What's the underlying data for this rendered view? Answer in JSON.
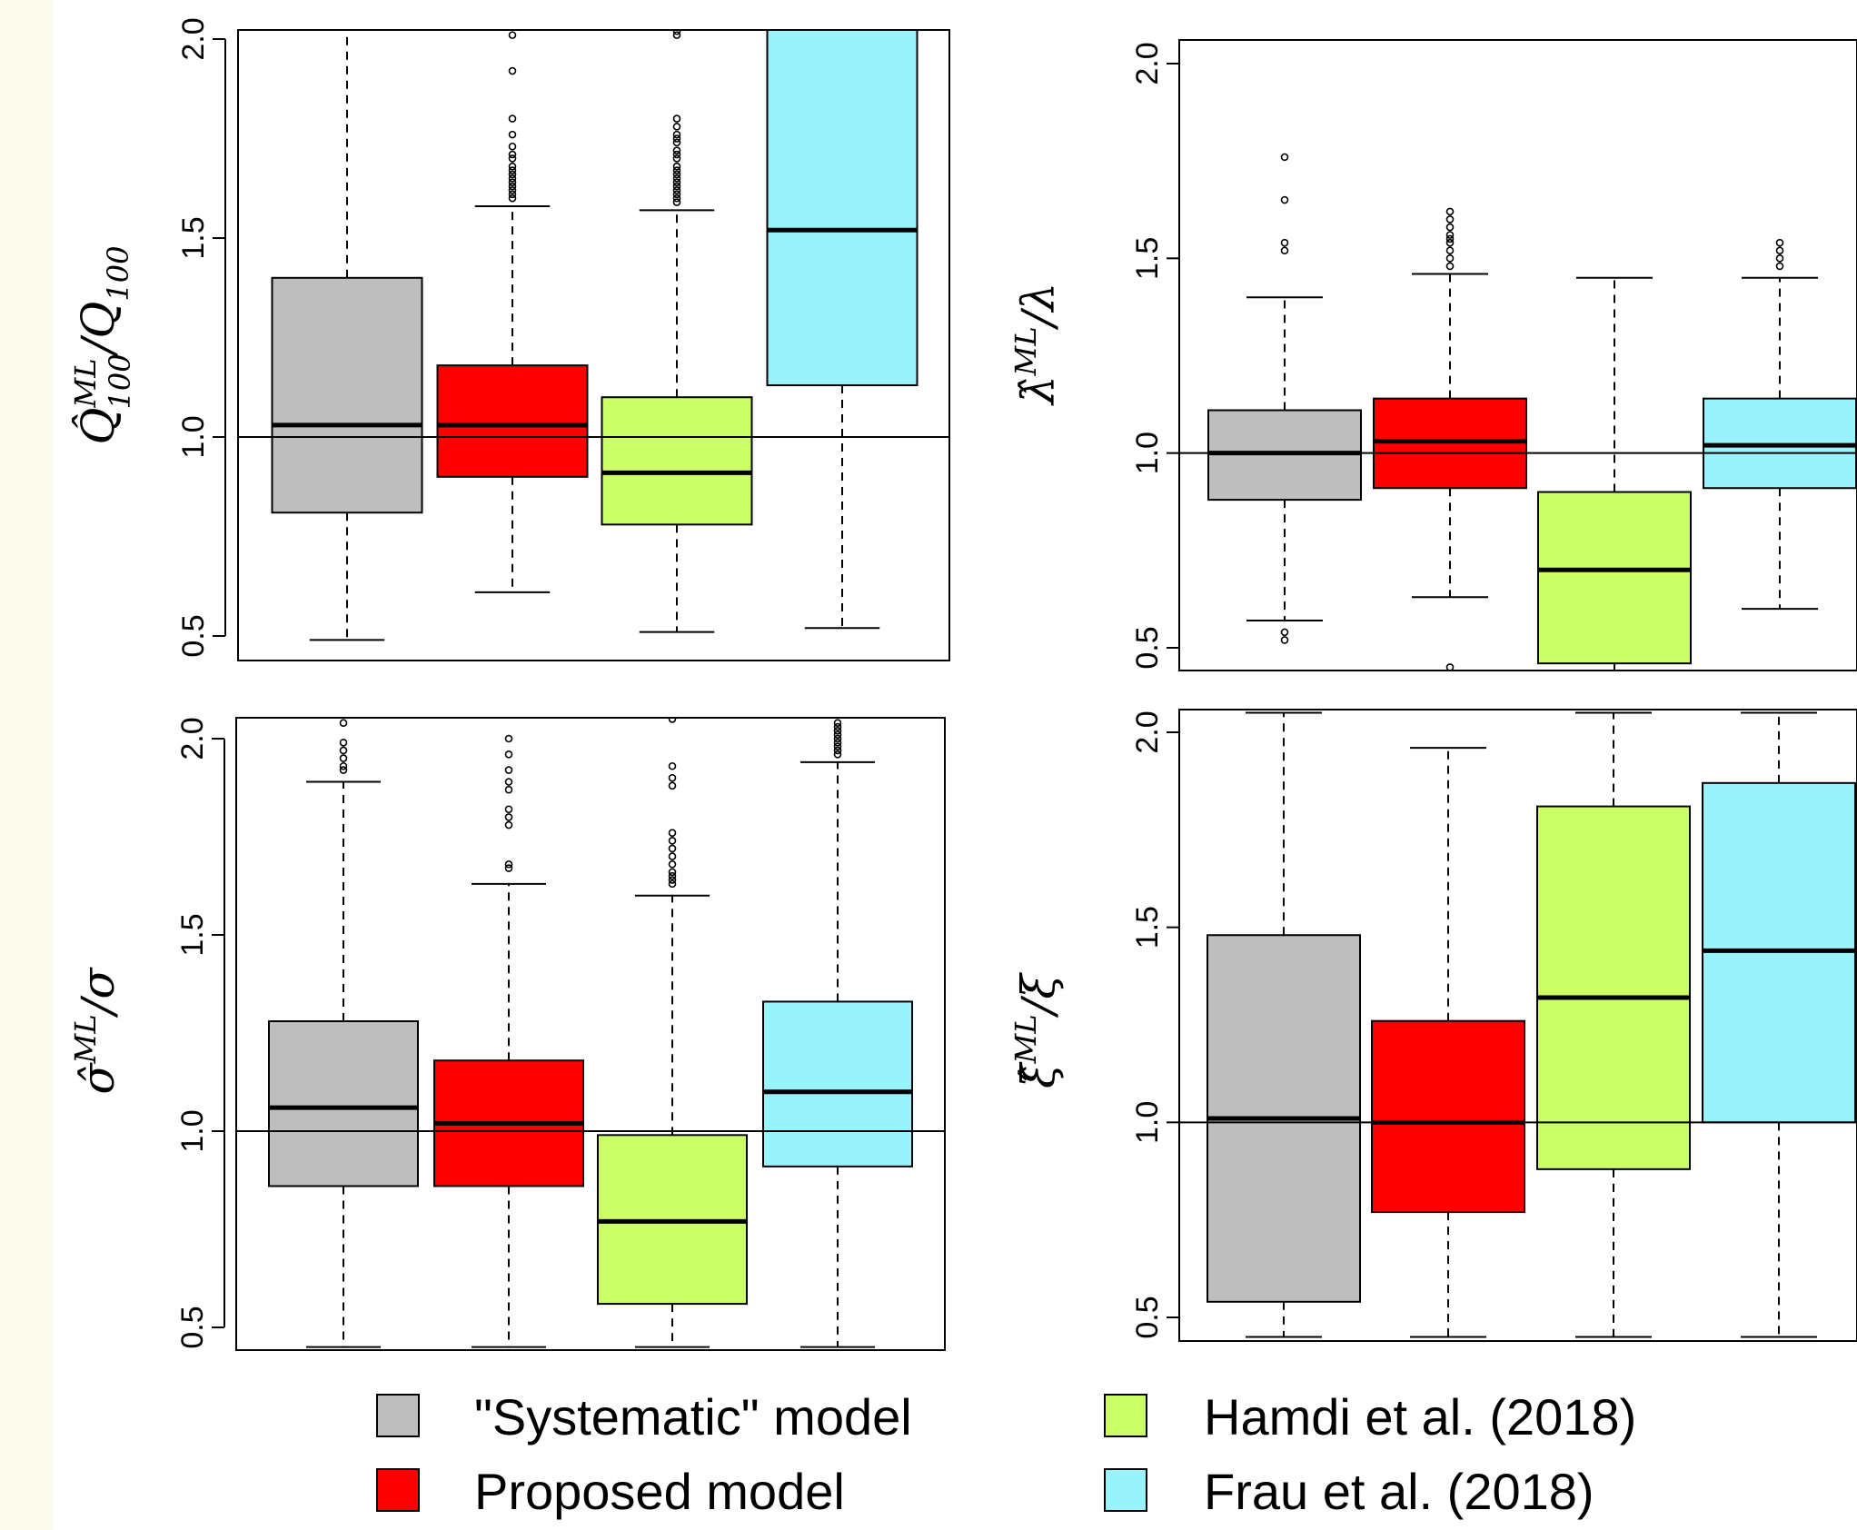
{
  "colors": {
    "systematic": "#bebebe",
    "proposed": "#ff0000",
    "hamdi": "#ccff66",
    "frau": "#99f3fd",
    "background": "#fbfbec"
  },
  "legend": [
    {
      "label": "\"Systematic\" model",
      "color": "#bebebe"
    },
    {
      "label": "Hamdi et al. (2018)",
      "color": "#ccff66"
    },
    {
      "label": "Proposed model",
      "color": "#ff0000"
    },
    {
      "label": "Frau et al. (2018)",
      "color": "#99f3fd"
    }
  ],
  "chart_data": [
    {
      "type": "boxplot",
      "ylabel": "Q̂ML100/Q100",
      "ylabel_parts": {
        "base": "Q̂",
        "sup": "ML",
        "sub": "100",
        "tail": "/Q",
        "tail_sub": "100"
      },
      "ylim": [
        0.47,
        2.04
      ],
      "yticks": [
        "0.5",
        "1.0",
        "1.5",
        "2.0"
      ],
      "reference_line": 1.0,
      "series": [
        {
          "name": "\"Systematic\" model",
          "q1": 0.81,
          "median": 1.03,
          "q3": 1.4,
          "whisker_low": 0.49,
          "whisker_high": 2.05,
          "outliers": []
        },
        {
          "name": "Proposed model",
          "q1": 0.9,
          "median": 1.03,
          "q3": 1.18,
          "whisker_low": 0.61,
          "whisker_high": 1.58,
          "outliers": [
            1.6,
            1.61,
            1.62,
            1.63,
            1.64,
            1.65,
            1.66,
            1.67,
            1.68,
            1.7,
            1.71,
            1.73,
            1.76,
            1.8,
            1.92,
            2.01
          ]
        },
        {
          "name": "Hamdi et al. (2018)",
          "q1": 0.78,
          "median": 0.91,
          "q3": 1.1,
          "whisker_low": 0.51,
          "whisker_high": 1.57,
          "outliers": [
            1.59,
            1.6,
            1.61,
            1.62,
            1.63,
            1.64,
            1.65,
            1.66,
            1.67,
            1.68,
            1.7,
            1.71,
            1.72,
            1.74,
            1.75,
            1.76,
            1.78,
            1.8,
            2.01,
            2.02
          ]
        },
        {
          "name": "Frau et al. (2018)",
          "q1": 1.13,
          "median": 1.52,
          "q3": 2.05,
          "whisker_low": 0.52,
          "whisker_high": 2.05,
          "outliers": []
        }
      ]
    },
    {
      "type": "boxplot",
      "ylabel": "λ̂ML/λ",
      "ylabel_parts": {
        "base": "λ̂",
        "sup": "ML",
        "sub": "",
        "tail": "/λ",
        "tail_sub": ""
      },
      "ylim": [
        0.44,
        2.06
      ],
      "yticks": [
        "0.5",
        "1.0",
        "1.5",
        "2.0"
      ],
      "reference_line": 1.0,
      "series": [
        {
          "name": "\"Systematic\" model",
          "q1": 0.88,
          "median": 1.0,
          "q3": 1.11,
          "whisker_low": 0.57,
          "whisker_high": 1.4,
          "outliers": [
            0.52,
            0.54,
            1.52,
            1.54,
            1.65,
            1.76
          ]
        },
        {
          "name": "Proposed model",
          "q1": 0.91,
          "median": 1.03,
          "q3": 1.14,
          "whisker_low": 0.63,
          "whisker_high": 1.46,
          "outliers": [
            0.45,
            1.48,
            1.5,
            1.52,
            1.54,
            1.55,
            1.56,
            1.58,
            1.6,
            1.62
          ]
        },
        {
          "name": "Hamdi et al. (2018)",
          "q1": 0.46,
          "median": 0.7,
          "q3": 0.9,
          "whisker_low": 0.44,
          "whisker_high": 1.45,
          "outliers": []
        },
        {
          "name": "Frau et al. (2018)",
          "q1": 0.91,
          "median": 1.02,
          "q3": 1.14,
          "whisker_low": 0.6,
          "whisker_high": 1.45,
          "outliers": [
            1.48,
            1.5,
            1.52,
            1.54
          ]
        }
      ]
    },
    {
      "type": "boxplot",
      "ylabel": "σ̂ML/σ",
      "ylabel_parts": {
        "base": "σ̂",
        "sup": "ML",
        "sub": "",
        "tail": "/σ",
        "tail_sub": ""
      },
      "ylim": [
        0.44,
        2.05
      ],
      "yticks": [
        "0.5",
        "1.0",
        "1.5",
        "2.0"
      ],
      "reference_line": 1.0,
      "series": [
        {
          "name": "\"Systematic\" model",
          "q1": 0.86,
          "median": 1.06,
          "q3": 1.28,
          "whisker_low": 0.45,
          "whisker_high": 1.89,
          "outliers": [
            1.92,
            1.93,
            1.95,
            1.97,
            1.99,
            2.04
          ]
        },
        {
          "name": "Proposed model",
          "q1": 0.86,
          "median": 1.02,
          "q3": 1.18,
          "whisker_low": 0.45,
          "whisker_high": 1.63,
          "outliers": [
            1.67,
            1.68,
            1.78,
            1.8,
            1.82,
            1.87,
            1.89,
            1.92,
            1.96,
            2.0
          ]
        },
        {
          "name": "Hamdi et al. (2018)",
          "q1": 0.56,
          "median": 0.77,
          "q3": 0.99,
          "whisker_low": 0.45,
          "whisker_high": 1.6,
          "outliers": [
            1.63,
            1.64,
            1.65,
            1.66,
            1.68,
            1.7,
            1.72,
            1.74,
            1.76,
            1.88,
            1.9,
            1.93,
            2.05
          ]
        },
        {
          "name": "Frau et al. (2018)",
          "q1": 0.91,
          "median": 1.1,
          "q3": 1.33,
          "whisker_low": 0.45,
          "whisker_high": 1.94,
          "outliers": [
            1.96,
            1.97,
            1.98,
            1.99,
            2.0,
            2.01,
            2.02,
            2.03,
            2.04
          ]
        }
      ]
    },
    {
      "type": "boxplot",
      "ylabel": "ξ̂ML/ξ",
      "ylabel_parts": {
        "base": "ξ̂",
        "sup": "ML",
        "sub": "",
        "tail": "/ξ",
        "tail_sub": ""
      },
      "ylim": [
        0.44,
        2.05
      ],
      "yticks": [
        "0.5",
        "1.0",
        "1.5",
        "2.0"
      ],
      "reference_line": 1.0,
      "series": [
        {
          "name": "\"Systematic\" model",
          "q1": 0.54,
          "median": 1.01,
          "q3": 1.48,
          "whisker_low": 0.45,
          "whisker_high": 2.05,
          "outliers": []
        },
        {
          "name": "Proposed model",
          "q1": 0.77,
          "median": 1.0,
          "q3": 1.26,
          "whisker_low": 0.45,
          "whisker_high": 1.96,
          "outliers": []
        },
        {
          "name": "Hamdi et al. (2018)",
          "q1": 0.88,
          "median": 1.32,
          "q3": 1.81,
          "whisker_low": 0.45,
          "whisker_high": 2.05,
          "outliers": []
        },
        {
          "name": "Frau et al. (2018)",
          "q1": 1.0,
          "median": 1.44,
          "q3": 1.87,
          "whisker_low": 0.45,
          "whisker_high": 2.05,
          "outliers": []
        }
      ]
    }
  ]
}
